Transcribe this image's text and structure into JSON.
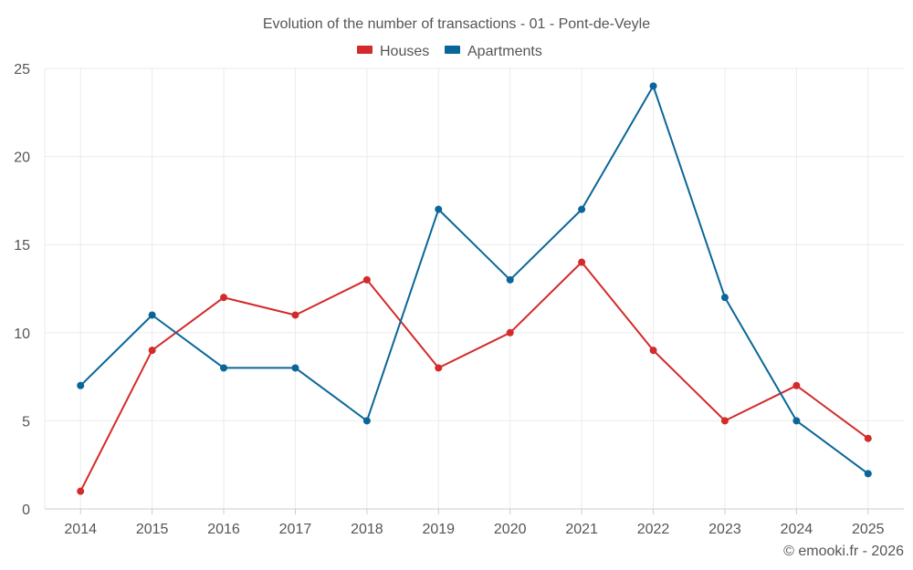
{
  "chart_data": {
    "type": "line",
    "title": "Evolution of the number of transactions - 01 - Pont-de-Veyle",
    "categories": [
      "2014",
      "2015",
      "2016",
      "2017",
      "2018",
      "2019",
      "2020",
      "2021",
      "2022",
      "2023",
      "2024",
      "2025"
    ],
    "series": [
      {
        "name": "Houses",
        "color": "#d32a2a",
        "values": [
          1,
          9,
          12,
          11,
          13,
          8,
          10,
          14,
          9,
          5,
          7,
          4
        ]
      },
      {
        "name": "Apartments",
        "color": "#0a6699",
        "values": [
          7,
          11,
          8,
          8,
          5,
          17,
          13,
          17,
          24,
          12,
          5,
          2
        ]
      }
    ],
    "ylim": [
      0,
      25
    ],
    "yticks": [
      0,
      5,
      10,
      15,
      20,
      25
    ],
    "xlabel": "",
    "ylabel": "",
    "grid": true,
    "legend_position": "top-center"
  },
  "credit": "© emooki.fr - 2026"
}
